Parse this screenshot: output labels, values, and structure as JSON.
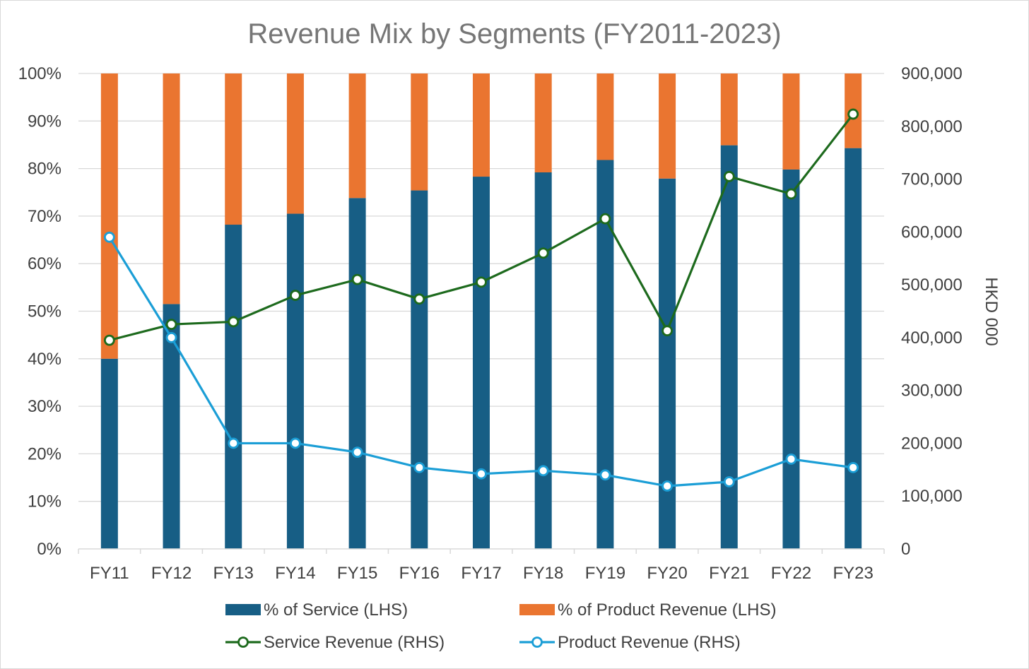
{
  "chart_data": {
    "type": "bar",
    "title": "Revenue Mix by Segments (FY2011-2023)",
    "categories": [
      "FY11",
      "FY12",
      "FY13",
      "FY14",
      "FY15",
      "FY16",
      "FY17",
      "FY18",
      "FY19",
      "FY20",
      "FY21",
      "FY22",
      "FY23"
    ],
    "y_left": {
      "ticks": [
        "0%",
        "10%",
        "20%",
        "30%",
        "40%",
        "50%",
        "60%",
        "70%",
        "80%",
        "90%",
        "100%"
      ],
      "range": [
        0,
        100
      ]
    },
    "y_right": {
      "label": "HKD 000",
      "ticks": [
        "0",
        "100,000",
        "200,000",
        "300,000",
        "400,000",
        "500,000",
        "600,000",
        "700,000",
        "800,000",
        "900,000"
      ],
      "range": [
        0,
        900000
      ]
    },
    "grid": true,
    "legend_position": "bottom",
    "series": [
      {
        "name": "% of Service (LHS)",
        "type": "stacked-bar",
        "axis": "left",
        "color": "#175e85",
        "values": [
          40,
          51.5,
          68.2,
          70.5,
          73.8,
          75.4,
          78.3,
          79.2,
          81.8,
          77.9,
          84.9,
          79.8,
          84.3
        ]
      },
      {
        "name": "% of Product Revenue (LHS)",
        "type": "stacked-bar",
        "axis": "left",
        "color": "#ea7530",
        "values": [
          60,
          48.5,
          31.8,
          29.5,
          26.2,
          24.6,
          21.7,
          20.8,
          18.2,
          22.1,
          15.1,
          20.2,
          15.7
        ]
      },
      {
        "name": "Service Revenue (RHS)",
        "type": "line",
        "axis": "right",
        "color": "#1d6a1d",
        "values": [
          395000,
          425000,
          430000,
          480000,
          510000,
          473000,
          505000,
          560000,
          625000,
          413000,
          705000,
          672000,
          823000
        ]
      },
      {
        "name": "Product Revenue (RHS)",
        "type": "line",
        "axis": "right",
        "color": "#1b9ed6",
        "values": [
          590000,
          400000,
          200000,
          200000,
          183000,
          154000,
          142000,
          148000,
          140000,
          119000,
          127000,
          170000,
          154000
        ]
      }
    ]
  }
}
